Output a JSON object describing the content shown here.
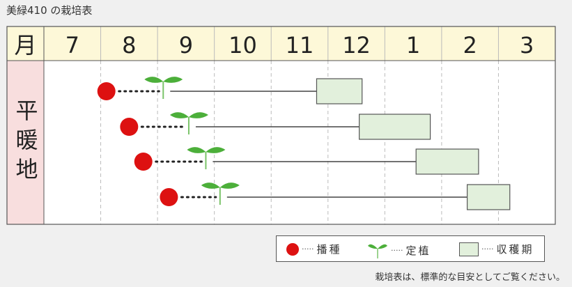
{
  "title": "美緑410 の栽培表",
  "chart_data": {
    "type": "gantt",
    "corner_label": "月",
    "months": [
      "7",
      "8",
      "9",
      "10",
      "11",
      "12",
      "1",
      "2",
      "3"
    ],
    "region_label": "平暖地",
    "grid": "dashed vertical",
    "rows": [
      {
        "sowing": {
          "month": "8",
          "fraction": 0.1
        },
        "transplant": {
          "month": "9",
          "fraction": 0.1
        },
        "harvest_start": {
          "month": "11",
          "fraction": 0.8
        },
        "harvest_end": {
          "month": "12",
          "fraction": 0.6
        }
      },
      {
        "sowing": {
          "month": "8",
          "fraction": 0.5
        },
        "transplant": {
          "month": "9",
          "fraction": 0.55
        },
        "harvest_start": {
          "month": "12",
          "fraction": 0.55
        },
        "harvest_end": {
          "month": "1",
          "fraction": 0.8
        }
      },
      {
        "sowing": {
          "month": "8",
          "fraction": 0.75
        },
        "transplant": {
          "month": "9",
          "fraction": 0.85
        },
        "harvest_start": {
          "month": "1",
          "fraction": 0.55
        },
        "harvest_end": {
          "month": "2",
          "fraction": 0.65
        }
      },
      {
        "sowing": {
          "month": "9",
          "fraction": 0.2
        },
        "transplant": {
          "month": "10",
          "fraction": 0.1
        },
        "harvest_start": {
          "month": "2",
          "fraction": 0.45
        },
        "harvest_end": {
          "month": "3",
          "fraction": 0.2
        }
      }
    ],
    "colors": {
      "sowing": "#dd1111",
      "seedling": "#4caf3a",
      "harvest_fill": "#e2f0dc",
      "header_bg": "#fdf8d8",
      "region_bg": "#f8dede"
    }
  },
  "legend": {
    "sowing": "播種",
    "transplant": "定植",
    "harvest": "収穫期",
    "dots": "·····"
  },
  "note": "栽培表は、標準的な目安としてご覧ください。"
}
